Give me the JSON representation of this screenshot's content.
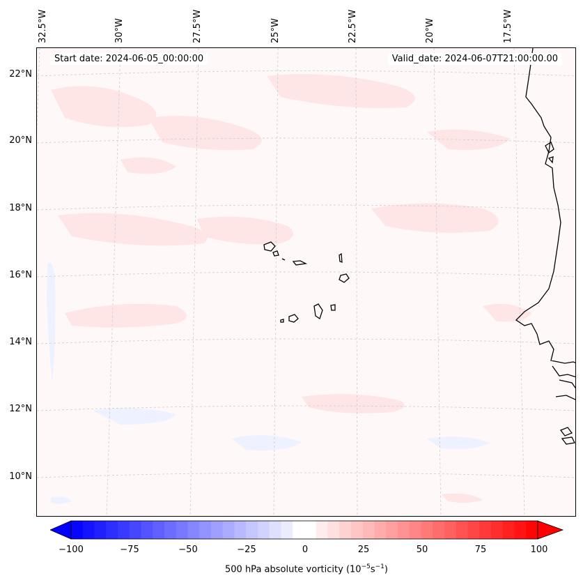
{
  "header": {
    "start_date": "Start date: 2024-06-05_00:00:00",
    "valid_date": "Valid_date: 2024-06-07T21:00:00.00"
  },
  "axes": {
    "lon_labels": [
      "32.5°W",
      "30°W",
      "27.5°W",
      "25°W",
      "22.5°W",
      "20°W",
      "17.5°W"
    ],
    "lat_labels": [
      "22°N",
      "20°N",
      "18°N",
      "16°N",
      "14°N",
      "12°N",
      "10°N"
    ]
  },
  "colorbar": {
    "ticks": [
      "−100",
      "−75",
      "−50",
      "−25",
      "0",
      "25",
      "50",
      "75",
      "100"
    ],
    "label_prefix": "500 hPa absolute vorticity (10",
    "label_sup1": "−5",
    "label_mid": "s",
    "label_sup2": "−1",
    "label_suffix": ")",
    "min": -100,
    "max": 100,
    "levels": 40,
    "negative_color": "#0000ff",
    "positive_color": "#ff0000"
  },
  "colors": {
    "background_field": "#fff8f8",
    "positive_weak": "#ffe9e9",
    "negative_weak": "#f2f4ff",
    "coastline": "#000000",
    "gridline": "#c8c8c8"
  }
}
